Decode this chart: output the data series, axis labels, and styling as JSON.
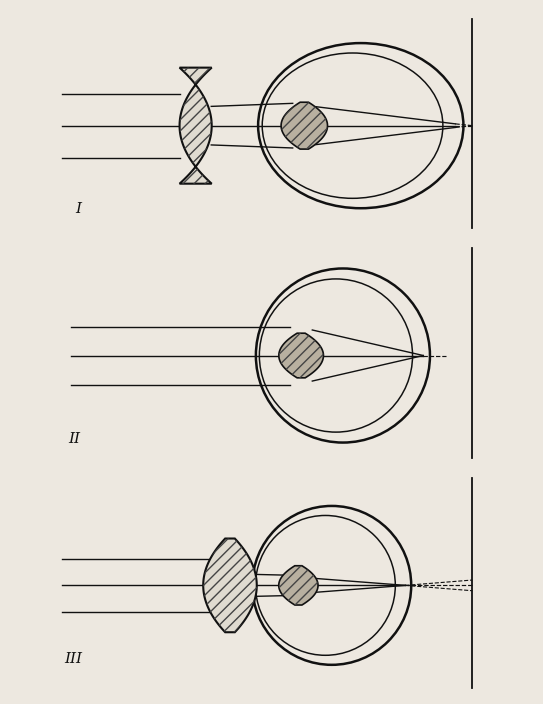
{
  "bg_color": "#ede8e0",
  "line_color": "#111111",
  "hatch_color": "#444444",
  "panel_labels": [
    "I",
    "II",
    "III"
  ],
  "figsize": [
    5.43,
    7.04
  ],
  "dpi": 100
}
